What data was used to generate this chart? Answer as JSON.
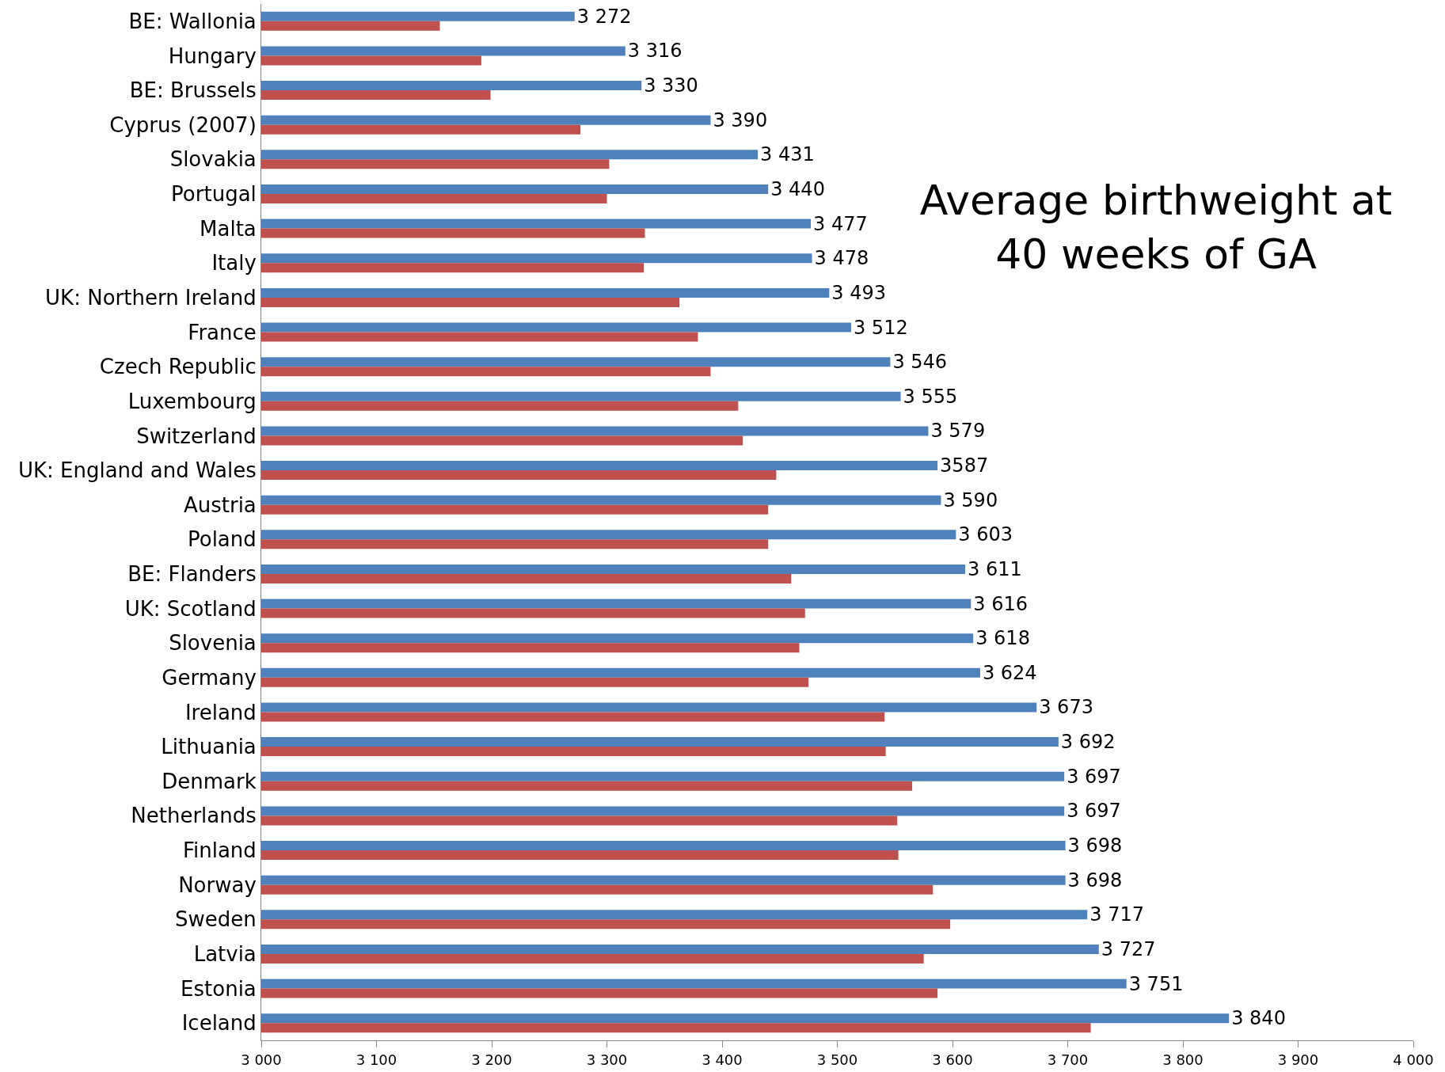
{
  "chart_data": {
    "type": "bar",
    "orientation": "horizontal",
    "title": "Average birthweight at 40 weeks of GA",
    "categories": [
      "BE: Wallonia",
      "Hungary",
      "BE: Brussels",
      "Cyprus (2007)",
      "Slovakia",
      "Portugal",
      "Malta",
      "Italy",
      "UK: Northern Ireland",
      "France",
      "Czech Republic",
      "Luxembourg",
      "Switzerland",
      "UK: England and Wales",
      "Austria",
      "Poland",
      "BE: Flanders",
      "UK: Scotland",
      "Slovenia",
      "Germany",
      "Ireland",
      "Lithuania",
      "Denmark",
      "Netherlands",
      "Finland",
      "Norway",
      "Sweden",
      "Latvia",
      "Estonia",
      "Iceland"
    ],
    "series": [
      {
        "color": "#4f81bd",
        "values": [
          3272,
          3316,
          3330,
          3390,
          3431,
          3440,
          3477,
          3478,
          3493,
          3512,
          3546,
          3555,
          3579,
          3587,
          3590,
          3603,
          3611,
          3616,
          3618,
          3624,
          3673,
          3692,
          3697,
          3697,
          3698,
          3698,
          3717,
          3727,
          3751,
          3840
        ],
        "value_labels": [
          "3 272",
          "3 316",
          "3 330",
          "3 390",
          "3 431",
          "3 440",
          "3 477",
          "3 478",
          "3 493",
          "3 512",
          "3 546",
          "3 555",
          "3 579",
          "3587",
          "3 590",
          "3 603",
          "3 611",
          "3 616",
          "3 618",
          "3 624",
          "3 673",
          "3 692",
          "3 697",
          "3 697",
          "3 698",
          "3 698",
          "3 717",
          "3 727",
          "3 751",
          "3 840"
        ]
      },
      {
        "color": "#c0504d",
        "values": [
          3155,
          3191,
          3199,
          3277,
          3302,
          3300,
          3333,
          3332,
          3363,
          3379,
          3390,
          3414,
          3418,
          3447,
          3440,
          3440,
          3460,
          3472,
          3467,
          3475,
          3541,
          3542,
          3565,
          3552,
          3553,
          3583,
          3598,
          3575,
          3587,
          3720
        ]
      }
    ],
    "xlim": [
      3000,
      4000
    ],
    "xticks": [
      {
        "value": 3000,
        "label": "3 000"
      },
      {
        "value": 3100,
        "label": "3 100"
      },
      {
        "value": 3200,
        "label": "3 200"
      },
      {
        "value": 3300,
        "label": "3 300"
      },
      {
        "value": 3400,
        "label": "3 400"
      },
      {
        "value": 3500,
        "label": "3 500"
      },
      {
        "value": 3600,
        "label": "3 600"
      },
      {
        "value": 3700,
        "label": "3 700"
      },
      {
        "value": 3800,
        "label": "3 800"
      },
      {
        "value": 3900,
        "label": "3 900"
      },
      {
        "value": 4000,
        "label": "4 000"
      }
    ],
    "grid": false
  }
}
